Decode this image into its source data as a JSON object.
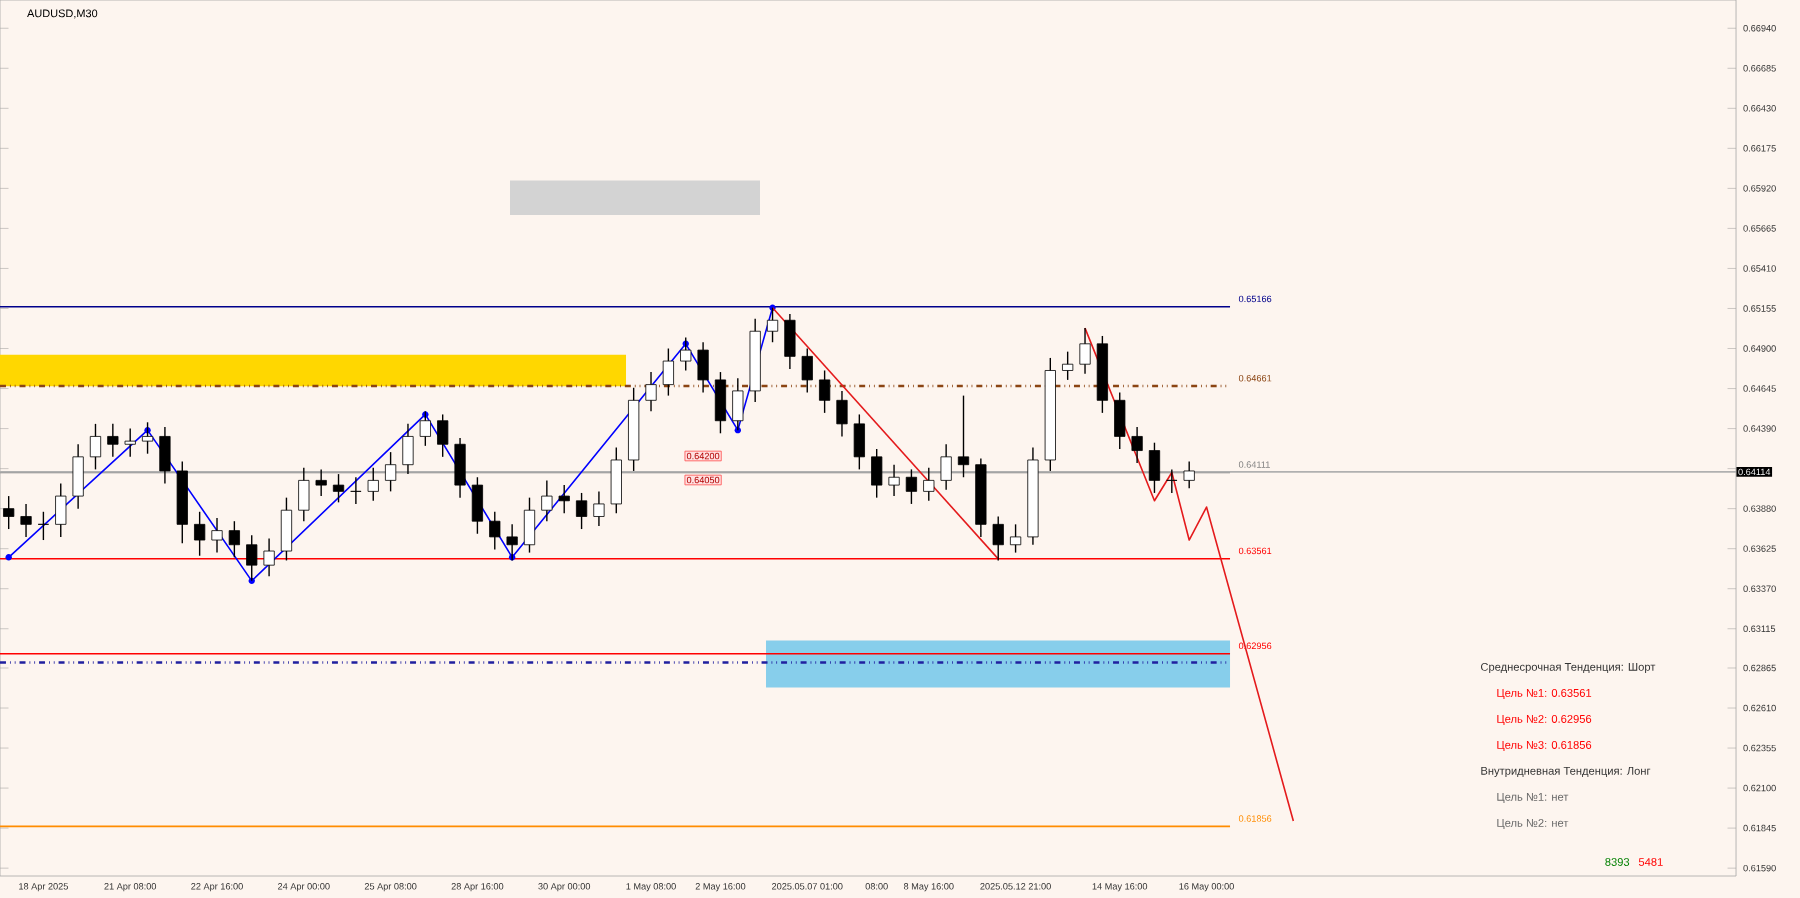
{
  "chart_data": {
    "type": "candlestick",
    "title": "AUDUSD,M30",
    "categories": [
      null,
      null,
      "18 Apr 2025",
      null,
      null,
      null,
      null,
      "21 Apr 08:00",
      null,
      null,
      null,
      null,
      "22 Apr 16:00",
      null,
      null,
      null,
      null,
      "24 Apr 00:00",
      null,
      null,
      null,
      null,
      "25 Apr 08:00",
      null,
      null,
      null,
      null,
      "28 Apr 16:00",
      null,
      null,
      null,
      null,
      "30 Apr 00:00",
      null,
      null,
      null,
      null,
      "1 May 08:00",
      null,
      null,
      null,
      "2 May 16:00",
      null,
      null,
      null,
      null,
      "2025.05.07 01:00",
      null,
      null,
      null,
      "08:00",
      null,
      null,
      "8 May 16:00",
      null,
      null,
      null,
      null,
      "2025.05.12 21:00",
      null,
      null,
      null,
      null,
      null,
      "14 May 16:00",
      null,
      null,
      null,
      null,
      "16 May 00:00",
      null,
      null,
      null,
      null,
      null,
      null,
      null,
      null,
      null,
      null,
      null,
      null,
      null,
      null,
      null,
      null,
      null,
      null,
      null,
      null,
      null,
      null,
      null,
      null,
      null,
      null,
      null,
      null,
      null,
      null
    ],
    "ohlc": [
      [
        0.6388,
        0.6396,
        0.6375,
        0.6383
      ],
      [
        0.6383,
        0.6391,
        0.637,
        0.6378
      ],
      [
        0.6378,
        0.6386,
        0.6368,
        0.6378
      ],
      [
        0.6378,
        0.6404,
        0.637,
        0.6396
      ],
      [
        0.6396,
        0.6429,
        0.6388,
        0.6421
      ],
      [
        0.6421,
        0.6442,
        0.6413,
        0.6434
      ],
      [
        0.6434,
        0.6442,
        0.6421,
        0.6429
      ],
      [
        0.6429,
        0.6439,
        0.6421,
        0.6431
      ],
      [
        0.6431,
        0.6443,
        0.6423,
        0.6434
      ],
      [
        0.6434,
        0.644,
        0.6404,
        0.6412
      ],
      [
        0.6412,
        0.6418,
        0.6366,
        0.6378
      ],
      [
        0.6378,
        0.6386,
        0.6358,
        0.6368
      ],
      [
        0.6368,
        0.6382,
        0.636,
        0.6374
      ],
      [
        0.6374,
        0.638,
        0.6357,
        0.6365
      ],
      [
        0.6365,
        0.6371,
        0.6342,
        0.6352
      ],
      [
        0.6352,
        0.6369,
        0.6345,
        0.6361
      ],
      [
        0.6361,
        0.6395,
        0.6355,
        0.6387
      ],
      [
        0.6387,
        0.6414,
        0.638,
        0.6406
      ],
      [
        0.6406,
        0.6413,
        0.6396,
        0.6403
      ],
      [
        0.6403,
        0.641,
        0.6392,
        0.6399
      ],
      [
        0.6399,
        0.6408,
        0.6391,
        0.6399
      ],
      [
        0.6399,
        0.6414,
        0.6393,
        0.6406
      ],
      [
        0.6406,
        0.6424,
        0.6399,
        0.6416
      ],
      [
        0.6416,
        0.6442,
        0.641,
        0.6434
      ],
      [
        0.6434,
        0.645,
        0.6428,
        0.6444
      ],
      [
        0.6444,
        0.6448,
        0.6421,
        0.6429
      ],
      [
        0.6429,
        0.6433,
        0.6395,
        0.6403
      ],
      [
        0.6403,
        0.6408,
        0.6372,
        0.638
      ],
      [
        0.638,
        0.6386,
        0.6362,
        0.637
      ],
      [
        0.637,
        0.6378,
        0.6355,
        0.6365
      ],
      [
        0.6365,
        0.6395,
        0.636,
        0.6387
      ],
      [
        0.6387,
        0.6406,
        0.638,
        0.6396
      ],
      [
        0.6396,
        0.6403,
        0.6385,
        0.6393
      ],
      [
        0.6393,
        0.6398,
        0.6375,
        0.6383
      ],
      [
        0.6383,
        0.6399,
        0.6377,
        0.6391
      ],
      [
        0.6391,
        0.6427,
        0.6385,
        0.6419
      ],
      [
        0.6419,
        0.6465,
        0.6412,
        0.6457
      ],
      [
        0.6457,
        0.6475,
        0.645,
        0.6467
      ],
      [
        0.6467,
        0.649,
        0.646,
        0.6482
      ],
      [
        0.6482,
        0.6497,
        0.6476,
        0.6489
      ],
      [
        0.6489,
        0.6494,
        0.6462,
        0.647
      ],
      [
        0.647,
        0.6475,
        0.6436,
        0.6444
      ],
      [
        0.6444,
        0.6471,
        0.6438,
        0.6463
      ],
      [
        0.6463,
        0.6509,
        0.6456,
        0.6501
      ],
      [
        0.6501,
        0.6516,
        0.6494,
        0.6508
      ],
      [
        0.6508,
        0.6512,
        0.6477,
        0.6485
      ],
      [
        0.6485,
        0.649,
        0.6462,
        0.647
      ],
      [
        0.647,
        0.6476,
        0.6449,
        0.6457
      ],
      [
        0.6457,
        0.6463,
        0.6434,
        0.6442
      ],
      [
        0.6442,
        0.6448,
        0.6413,
        0.6421
      ],
      [
        0.6421,
        0.6426,
        0.6395,
        0.6403
      ],
      [
        0.6403,
        0.6416,
        0.6396,
        0.6408
      ],
      [
        0.6408,
        0.6413,
        0.6391,
        0.6399
      ],
      [
        0.6399,
        0.6414,
        0.6393,
        0.6406
      ],
      [
        0.6406,
        0.6429,
        0.64,
        0.6421
      ],
      [
        0.6421,
        0.646,
        0.6408,
        0.6416
      ],
      [
        0.6416,
        0.642,
        0.637,
        0.6378
      ],
      [
        0.6378,
        0.6383,
        0.6355,
        0.6365
      ],
      [
        0.6365,
        0.6378,
        0.636,
        0.637
      ],
      [
        0.637,
        0.6427,
        0.6365,
        0.6419
      ],
      [
        0.6419,
        0.6484,
        0.6412,
        0.6476
      ],
      [
        0.6476,
        0.6488,
        0.647,
        0.648
      ],
      [
        0.648,
        0.6503,
        0.6474,
        0.6493
      ],
      [
        0.6493,
        0.6498,
        0.6449,
        0.6457
      ],
      [
        0.6457,
        0.6462,
        0.6426,
        0.6434
      ],
      [
        0.6434,
        0.644,
        0.6417,
        0.6425
      ],
      [
        0.6425,
        0.643,
        0.6398,
        0.6406
      ],
      [
        0.6406,
        0.6413,
        0.6398,
        0.6406
      ],
      [
        0.6406,
        0.6418,
        0.6401,
        0.6412
      ],
      null,
      null,
      null,
      null,
      null,
      null,
      null,
      null,
      null,
      null,
      null,
      null,
      null,
      null,
      null,
      null,
      null,
      null,
      null,
      null,
      null,
      null,
      null,
      null,
      null,
      null,
      null,
      null,
      null,
      null,
      null
    ],
    "series": [
      {
        "type": "line",
        "color": "#0000ff",
        "marker": "circle",
        "line_style": "solid",
        "values": [
          0.6357,
          null,
          null,
          null,
          null,
          null,
          null,
          null,
          0.6438,
          null,
          null,
          null,
          null,
          null,
          0.6342,
          null,
          null,
          null,
          null,
          null,
          null,
          null,
          null,
          null,
          0.6448,
          null,
          null,
          null,
          null,
          0.6357,
          null,
          null,
          null,
          null,
          null,
          null,
          null,
          null,
          null,
          0.6493,
          null,
          null,
          0.6438,
          null,
          0.6516,
          null,
          null,
          null,
          null,
          null,
          null,
          null,
          null,
          null,
          null,
          null,
          null,
          null,
          null,
          null,
          null,
          null,
          null,
          null,
          null,
          null,
          null,
          null,
          null,
          null,
          null,
          null,
          null,
          null,
          null,
          null,
          null,
          null,
          null,
          null,
          null,
          null,
          null,
          null,
          null,
          null,
          null,
          null,
          null,
          null,
          null,
          null,
          null,
          null,
          null,
          null,
          null,
          null,
          null,
          null
        ]
      },
      {
        "type": "line",
        "color": "#e41a1c",
        "marker": "none",
        "line_style": "solid",
        "values": [
          null,
          null,
          null,
          null,
          null,
          null,
          null,
          null,
          null,
          null,
          null,
          null,
          null,
          null,
          null,
          null,
          null,
          null,
          null,
          null,
          null,
          null,
          null,
          null,
          null,
          null,
          null,
          null,
          null,
          null,
          null,
          null,
          null,
          null,
          null,
          null,
          null,
          null,
          null,
          null,
          null,
          null,
          null,
          null,
          0.6516,
          null,
          null,
          null,
          null,
          null,
          null,
          null,
          null,
          null,
          null,
          null,
          null,
          0.6356,
          null,
          null,
          null,
          null,
          null,
          null,
          null,
          null,
          null,
          null,
          null,
          null,
          null,
          null,
          null,
          null,
          null,
          null,
          null,
          null,
          null,
          null,
          null,
          null,
          null,
          null,
          null,
          null,
          null,
          null,
          null,
          null,
          null,
          null,
          null,
          null,
          null,
          null,
          null,
          null,
          null,
          null
        ]
      },
      {
        "type": "line",
        "color": "#e41a1c",
        "marker": "none",
        "line_style": "solid",
        "values": [
          null,
          null,
          null,
          null,
          null,
          null,
          null,
          null,
          null,
          null,
          null,
          null,
          null,
          null,
          null,
          null,
          null,
          null,
          null,
          null,
          null,
          null,
          null,
          null,
          null,
          null,
          null,
          null,
          null,
          null,
          null,
          null,
          null,
          null,
          null,
          null,
          null,
          null,
          null,
          null,
          null,
          null,
          null,
          null,
          null,
          null,
          null,
          null,
          null,
          null,
          null,
          null,
          null,
          null,
          null,
          null,
          null,
          null,
          null,
          null,
          null,
          null,
          0.6503,
          null,
          null,
          null,
          0.6393,
          0.6411,
          0.6368,
          0.6389,
          null,
          null,
          null,
          null,
          0.6189,
          null,
          null,
          null,
          null,
          null,
          null,
          null,
          null,
          null,
          null,
          null,
          null,
          null,
          null,
          null,
          null,
          null,
          null,
          null,
          null,
          null,
          null,
          null,
          null,
          null
        ]
      }
    ],
    "ylim": [
      0.6154,
      0.6712
    ],
    "yticks": [
      {
        "value": 0.6159,
        "label": "0.61590"
      },
      {
        "value": 0.61845,
        "label": "0.61845"
      },
      {
        "value": 0.621,
        "label": "0.62100"
      },
      {
        "value": 0.62355,
        "label": "0.62355"
      },
      {
        "value": 0.6261,
        "label": "0.62610"
      },
      {
        "value": 0.62865,
        "label": "0.62865"
      },
      {
        "value": 0.63115,
        "label": "0.63115"
      },
      {
        "value": 0.6337,
        "label": "0.63370"
      },
      {
        "value": 0.63625,
        "label": "0.63625"
      },
      {
        "value": 0.6388,
        "label": "0.63880"
      },
      {
        "value": 0.64135,
        "label": null
      },
      {
        "value": 0.6439,
        "label": "0.64390"
      },
      {
        "value": 0.64645,
        "label": "0.64645"
      },
      {
        "value": 0.649,
        "label": "0.64900"
      },
      {
        "value": 0.65155,
        "label": "0.65155"
      },
      {
        "value": 0.6541,
        "label": "0.65410"
      },
      {
        "value": 0.65665,
        "label": "0.65665"
      },
      {
        "value": 0.6592,
        "label": "0.65920"
      },
      {
        "value": 0.66175,
        "label": "0.66175"
      },
      {
        "value": 0.6643,
        "label": "0.66430"
      },
      {
        "value": 0.66685,
        "label": "0.66685"
      },
      {
        "value": 0.6694,
        "label": "0.66940"
      }
    ],
    "bands": [
      {
        "axis": "y",
        "from": 0.6466,
        "to": 0.6486,
        "color": "#ffd700"
      },
      {
        "axis": "y",
        "from": 0.6274,
        "to": 0.6304,
        "color": "#87ceeb"
      },
      {
        "axis": "y",
        "from": 0.6575,
        "to": 0.6597,
        "color": "#d3d3d3"
      }
    ],
    "ref_lines": [
      {
        "axis": "y",
        "value": 0.65166,
        "label": "0.65166",
        "color": "#00008b",
        "line_style": "solid"
      },
      {
        "axis": "y",
        "value": 0.64661,
        "label": "0.64661",
        "color": "#8b4513",
        "line_style": "dashed"
      },
      {
        "axis": "y",
        "value": 0.64111,
        "label": "0.64111",
        "color": "#808080",
        "line_style": "solid"
      },
      {
        "axis": "y",
        "value": 0.63561,
        "label": "0.63561",
        "color": "#ff0000",
        "line_style": "solid"
      },
      {
        "axis": "y",
        "value": 0.62956,
        "label": "0.62956",
        "color": "#ff0000",
        "line_style": "solid"
      },
      {
        "axis": "y",
        "value": 0.61856,
        "label": "0.61856",
        "color": "#ff8c00",
        "line_style": "solid"
      },
      {
        "axis": "y",
        "value": 0.629,
        "color": "#2020a0",
        "line_style": "dashed"
      },
      {
        "axis": "y",
        "value": 0.64114,
        "label": "0.64114",
        "color": "#b0b0b0",
        "line_style": "solid"
      }
    ],
    "annotations": [
      "Среднесрочная Тенденция: Шорт",
      "Цель №1: 0.63561",
      "Цель №2: 0.62956",
      "Цель №3: 0.61856",
      "Внутридневная Тенденция: Лонг",
      "Цель №1: нет",
      "Цель №2: нет",
      "8393",
      "5481",
      "0.64200",
      "0.64050"
    ],
    "grid": false
  }
}
